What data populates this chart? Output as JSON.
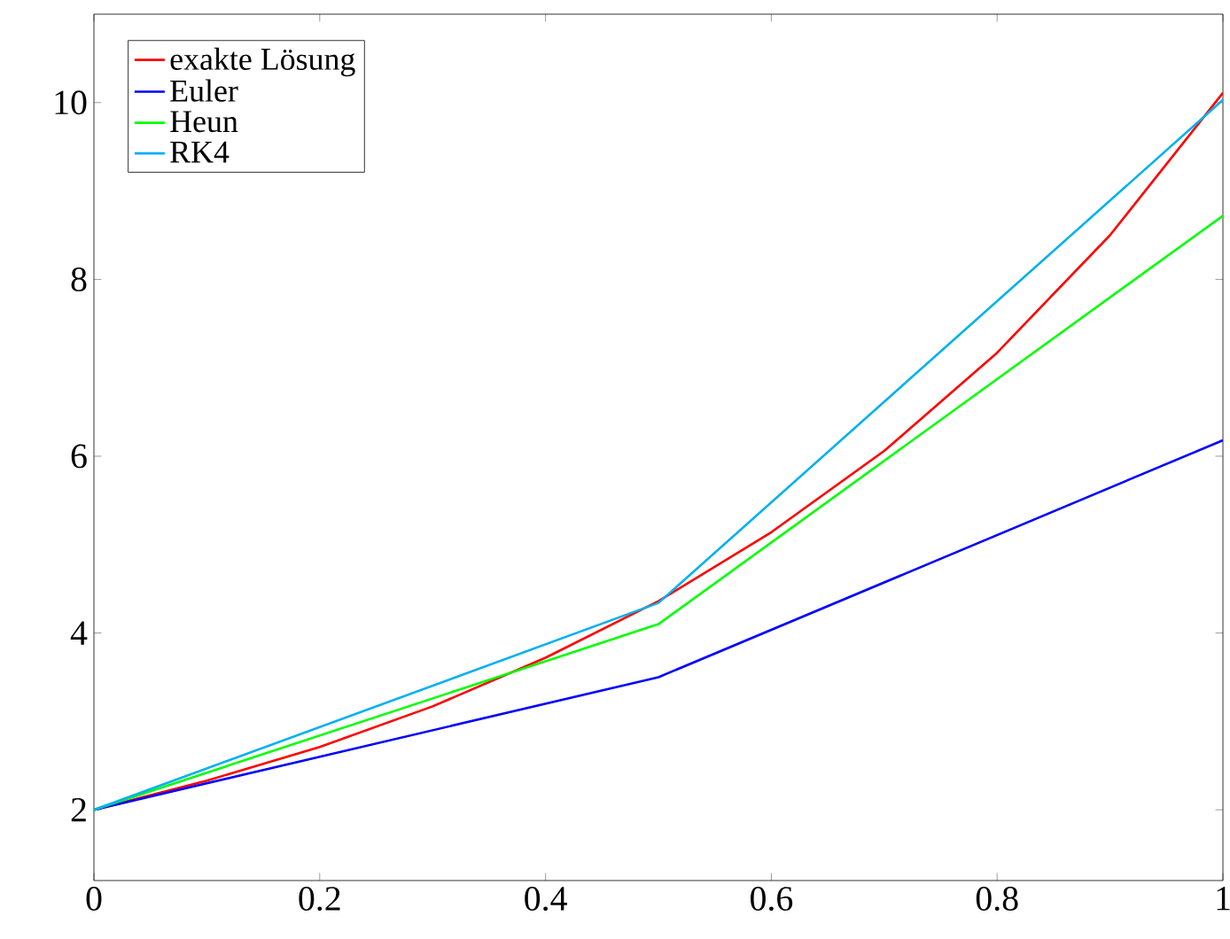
{
  "chart_data": {
    "type": "line",
    "xlim": [
      0,
      1
    ],
    "ylim": [
      1.2,
      11
    ],
    "xticks": [
      0,
      0.2,
      0.4,
      0.6,
      0.8,
      1
    ],
    "yticks": [
      2,
      4,
      6,
      8,
      10
    ],
    "legend": "top left",
    "grid": false,
    "marker": "none",
    "series": [
      {
        "name": "exakte Lösung",
        "color": "#ff0000",
        "x": [
          0,
          0.1,
          0.2,
          0.3,
          0.4,
          0.5,
          0.6,
          0.7,
          0.8,
          0.9,
          1
        ],
        "values": [
          2,
          2.33,
          2.71,
          3.17,
          3.72,
          4.36,
          5.14,
          6.06,
          7.17,
          8.5,
          10.11
        ]
      },
      {
        "name": "Euler",
        "color": "#0000ff",
        "x": [
          0,
          0.5,
          1
        ],
        "values": [
          2,
          3.5,
          6.18
        ]
      },
      {
        "name": "Heun",
        "color": "#00ff00",
        "x": [
          0,
          0.5,
          1
        ],
        "values": [
          2,
          4.1,
          8.72
        ]
      },
      {
        "name": "RK4",
        "color": "#00b0f0",
        "x": [
          0,
          0.5,
          1
        ],
        "values": [
          2,
          4.34,
          10.03
        ]
      }
    ]
  }
}
